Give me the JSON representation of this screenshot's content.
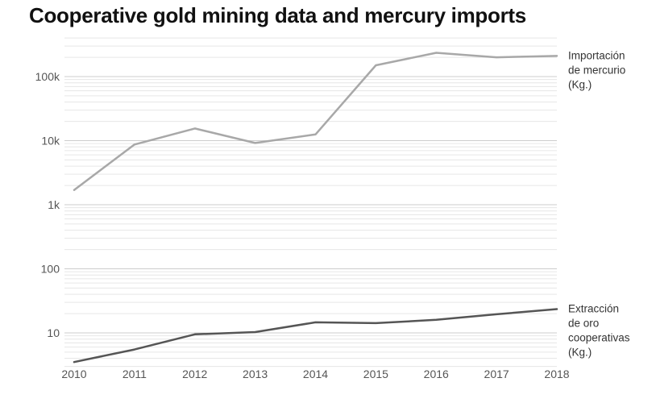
{
  "chart_data": {
    "type": "line",
    "title": "Cooperative gold mining data and mercury imports",
    "xlabel": "",
    "ylabel": "",
    "y_scale": "log",
    "ylim": [
      2.5,
      400000
    ],
    "x": [
      2010,
      2011,
      2012,
      2013,
      2014,
      2015,
      2016,
      2017,
      2018
    ],
    "x_tick_labels": [
      "2010",
      "2011",
      "2012",
      "2013",
      "2014",
      "2015",
      "2016",
      "2017",
      "2018"
    ],
    "y_tick_values": [
      10,
      100,
      1000,
      10000,
      100000
    ],
    "y_tick_labels": [
      "10",
      "100",
      "1k",
      "10k",
      "100k"
    ],
    "grid": true,
    "legend": "inline-right",
    "series": [
      {
        "name_lines": [
          "Importación",
          "de mercurio",
          "(Kg.)"
        ],
        "color": "#a8a8a8",
        "values": [
          1700,
          8700,
          15500,
          9200,
          12500,
          150000,
          235000,
          200000,
          210000
        ]
      },
      {
        "name_lines": [
          "Extracción",
          "de oro",
          "cooperativas",
          "(Kg.)"
        ],
        "color": "#555555",
        "values": [
          3.5,
          5.5,
          9.5,
          10.3,
          14.6,
          14.2,
          16,
          19.5,
          23.5
        ]
      }
    ]
  }
}
